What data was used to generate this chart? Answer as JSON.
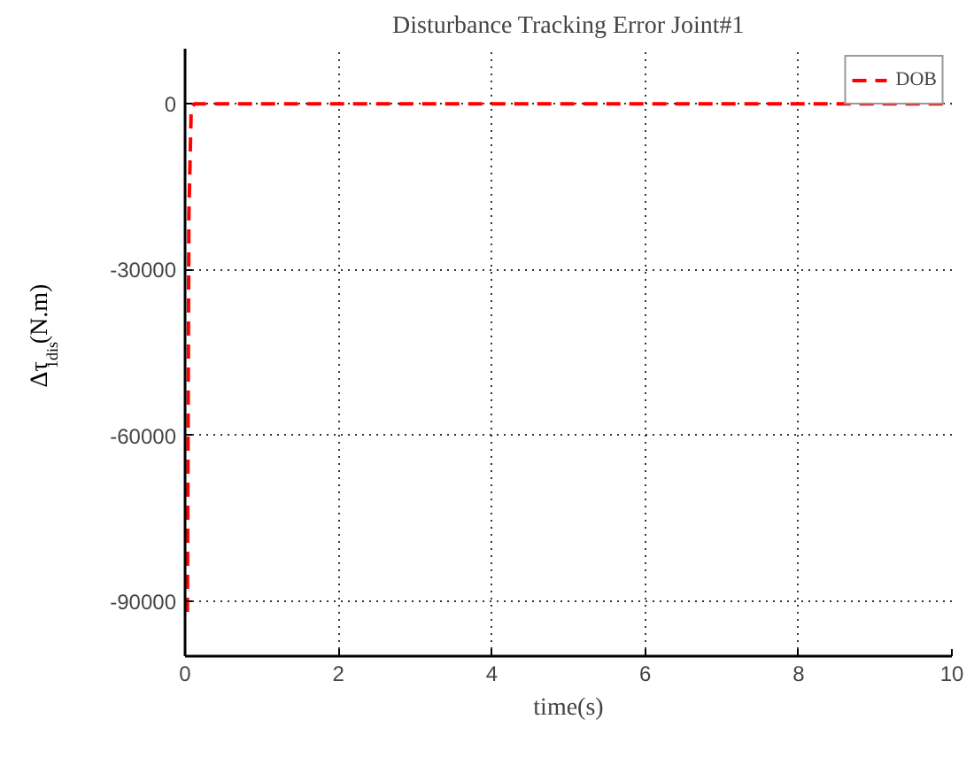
{
  "chart_data": {
    "type": "line",
    "title": "Disturbance Tracking Error Joint#1",
    "xlabel": "time(s)",
    "ylabel": "Δτ$_{1dis}$(N.m)",
    "series": [
      {
        "name": "DOB",
        "color": "#ff0000",
        "x": [
          0.03,
          0.05,
          0.08,
          0.12,
          2,
          10
        ],
        "values": [
          -92000,
          -20000,
          -1000,
          0,
          0,
          0
        ]
      }
    ],
    "xlim": [
      0,
      10
    ],
    "ylim": [
      -100000,
      10000
    ],
    "xticks": [
      0,
      2,
      4,
      6,
      8,
      10
    ],
    "yticks": [
      0,
      -30000,
      -60000,
      -90000
    ],
    "grid": true,
    "legend": "top right",
    "line_style": "dashed",
    "marker": "none"
  }
}
